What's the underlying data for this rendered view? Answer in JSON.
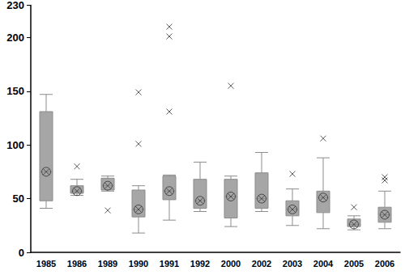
{
  "chart_data": {
    "type": "boxplot",
    "categories": [
      "1985",
      "1986",
      "1989",
      "1990",
      "1991",
      "1992",
      "2000",
      "2002",
      "2003",
      "2004",
      "2005",
      "2006"
    ],
    "series": [
      {
        "type": "boxplot",
        "color": "#a6a6a6",
        "marker": "circle-x",
        "values": [
          [
            41,
            48,
            75,
            131,
            147
          ],
          [
            53,
            55,
            57,
            62,
            68
          ],
          [
            57,
            58,
            62,
            69,
            71
          ],
          [
            18,
            33,
            40,
            58,
            62
          ],
          [
            30,
            49,
            57,
            71,
            72
          ],
          [
            38,
            41,
            48,
            68,
            84
          ],
          [
            24,
            32,
            52,
            68,
            71
          ],
          [
            38,
            41,
            50,
            74,
            93
          ],
          [
            25,
            34,
            40,
            48,
            59
          ],
          [
            22,
            37,
            51,
            57,
            88
          ],
          [
            21,
            24,
            26,
            31,
            34
          ],
          [
            22,
            28,
            35,
            42,
            57
          ]
        ]
      },
      {
        "type": "scatter",
        "color": "#333333",
        "marker": "x",
        "values": [
          [],
          [
            80
          ],
          [
            39
          ],
          [
            101,
            149
          ],
          [
            131,
            201,
            210
          ],
          [],
          [
            155
          ],
          [],
          [
            73
          ],
          [
            106
          ],
          [
            42
          ],
          [
            67,
            70
          ]
        ]
      }
    ],
    "ylim": [
      0,
      230
    ],
    "yticks": [
      0,
      50,
      100,
      150,
      200
    ],
    "grid": false
  }
}
